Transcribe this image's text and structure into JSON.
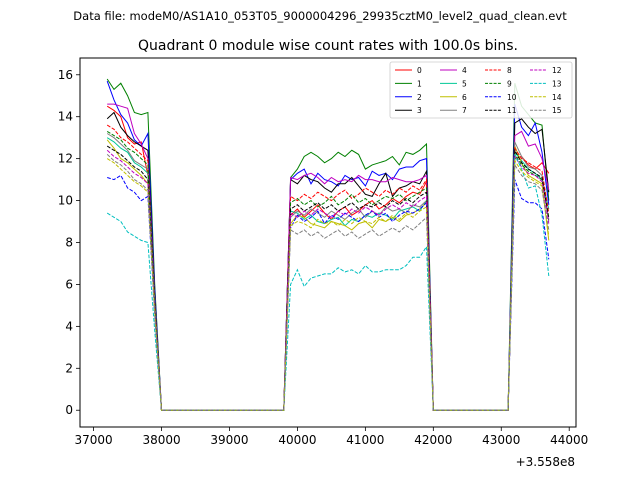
{
  "suptitle": "Data file: modeM0/AS1A10_053T05_9000004296_29935cztM0_level2_quad_clean.evt",
  "chart_data": {
    "type": "line",
    "title": "Quadrant 0 module wise count rates with 100.0s bins.",
    "xlabel": "",
    "ylabel": "",
    "x_offset_label": "+3.558e8",
    "xlim": [
      36800,
      44100
    ],
    "ylim": [
      -0.8,
      16.8
    ],
    "x_ticks": [
      37000,
      38000,
      39000,
      40000,
      41000,
      42000,
      43000,
      44000
    ],
    "x_tick_labels": [
      "37000",
      "38000",
      "39000",
      "40000",
      "41000",
      "42000",
      "43000",
      "44000"
    ],
    "y_ticks": [
      0,
      2,
      4,
      6,
      8,
      10,
      12,
      14,
      16
    ],
    "y_tick_labels": [
      "0",
      "2",
      "4",
      "6",
      "8",
      "10",
      "12",
      "14",
      "16"
    ],
    "legend_position": "upper-right",
    "x": [
      37200,
      37300,
      37400,
      37500,
      37600,
      37700,
      37800,
      37900,
      38000,
      38100,
      38200,
      38300,
      38400,
      38500,
      38600,
      38700,
      38800,
      38900,
      39000,
      39100,
      39200,
      39300,
      39400,
      39500,
      39600,
      39700,
      39800,
      39900,
      40000,
      40100,
      40200,
      40300,
      40400,
      40500,
      40600,
      40700,
      40800,
      40900,
      41000,
      41100,
      41200,
      41300,
      41400,
      41500,
      41600,
      41700,
      41800,
      41900,
      42000,
      42100,
      42200,
      42300,
      42400,
      42500,
      42600,
      42700,
      42800,
      42900,
      43000,
      43100,
      43200,
      43300,
      43400,
      43500,
      43600,
      43700
    ],
    "series": [
      {
        "name": "0",
        "color": "#ff0000",
        "dash": false,
        "values": [
          14.5,
          14.3,
          14.0,
          13.0,
          12.7,
          12.8,
          11.2,
          5.0,
          0,
          0,
          0,
          0,
          0,
          0,
          0,
          0,
          0,
          0,
          0,
          0,
          0,
          0,
          0,
          0,
          0,
          0,
          0,
          9.3,
          9.6,
          9.2,
          9.5,
          9.8,
          9.4,
          9.1,
          9.5,
          9.7,
          9.3,
          9.5,
          9.8,
          10.0,
          9.6,
          9.8,
          10.1,
          9.9,
          10.2,
          10.4,
          10.3,
          10.9,
          0,
          0,
          0,
          0,
          0,
          0,
          0,
          0,
          0,
          0,
          0,
          0,
          12.0,
          12.1,
          11.7,
          11.5,
          11.8,
          11.3
        ]
      },
      {
        "name": "1",
        "color": "#008000",
        "dash": false,
        "values": [
          15.8,
          15.3,
          15.6,
          15.0,
          14.2,
          14.1,
          14.2,
          6.0,
          0,
          0,
          0,
          0,
          0,
          0,
          0,
          0,
          0,
          0,
          0,
          0,
          0,
          0,
          0,
          0,
          0,
          0,
          0,
          11.1,
          11.5,
          12.1,
          12.3,
          12.1,
          11.8,
          12.0,
          12.3,
          12.1,
          12.4,
          12.2,
          11.5,
          11.7,
          11.8,
          11.9,
          12.1,
          11.7,
          12.3,
          12.2,
          12.4,
          12.7,
          0,
          0,
          0,
          0,
          0,
          0,
          0,
          0,
          0,
          0,
          0,
          0,
          15.6,
          14.5,
          14.1,
          13.7,
          13.6,
          10.0
        ]
      },
      {
        "name": "2",
        "color": "#0000ff",
        "dash": false,
        "values": [
          15.7,
          14.8,
          14.1,
          13.7,
          12.9,
          12.6,
          13.2,
          5.8,
          0,
          0,
          0,
          0,
          0,
          0,
          0,
          0,
          0,
          0,
          0,
          0,
          0,
          0,
          0,
          0,
          0,
          0,
          0,
          11.0,
          11.3,
          11.5,
          10.8,
          11.3,
          11.0,
          10.9,
          10.7,
          11.2,
          11.0,
          11.1,
          10.7,
          11.4,
          11.2,
          11.3,
          11.0,
          11.5,
          11.6,
          11.6,
          11.9,
          12.0,
          0,
          0,
          0,
          0,
          0,
          0,
          0,
          0,
          0,
          0,
          0,
          0,
          14.6,
          13.5,
          13.1,
          13.7,
          12.3,
          9.8
        ]
      },
      {
        "name": "3",
        "color": "#000000",
        "dash": false,
        "values": [
          13.9,
          14.2,
          13.5,
          13.1,
          12.8,
          12.6,
          12.4,
          5.5,
          0,
          0,
          0,
          0,
          0,
          0,
          0,
          0,
          0,
          0,
          0,
          0,
          0,
          0,
          0,
          0,
          0,
          0,
          0,
          11.0,
          10.8,
          11.2,
          11.0,
          10.9,
          10.6,
          10.4,
          10.8,
          10.8,
          11.1,
          10.7,
          10.3,
          10.2,
          10.8,
          11.3,
          10.2,
          10.6,
          10.7,
          10.9,
          10.8,
          11.4,
          0,
          0,
          0,
          0,
          0,
          0,
          0,
          0,
          0,
          0,
          0,
          0,
          13.7,
          13.9,
          13.5,
          13.2,
          13.4,
          10.4
        ]
      },
      {
        "name": "4",
        "color": "#bf00bf",
        "dash": false,
        "values": [
          14.6,
          14.6,
          14.5,
          14.4,
          13.2,
          12.7,
          12.0,
          5.3,
          0,
          0,
          0,
          0,
          0,
          0,
          0,
          0,
          0,
          0,
          0,
          0,
          0,
          0,
          0,
          0,
          0,
          0,
          0,
          11.1,
          11.0,
          11.2,
          11.3,
          11.1,
          10.8,
          11.1,
          10.9,
          11.0,
          10.9,
          11.2,
          11.0,
          11.0,
          10.9,
          10.9,
          11.1,
          11.0,
          10.9,
          10.9,
          11.0,
          11.2,
          0,
          0,
          0,
          0,
          0,
          0,
          0,
          0,
          0,
          0,
          0,
          0,
          13.1,
          13.3,
          12.6,
          12.7,
          12.0,
          10.5
        ]
      },
      {
        "name": "5",
        "color": "#00c896",
        "dash": false,
        "values": [
          13.0,
          12.8,
          12.5,
          12.3,
          11.8,
          11.6,
          11.3,
          5.2,
          0,
          0,
          0,
          0,
          0,
          0,
          0,
          0,
          0,
          0,
          0,
          0,
          0,
          0,
          0,
          0,
          0,
          0,
          0,
          9.5,
          9.4,
          9.1,
          9.3,
          9.0,
          8.9,
          9.1,
          9.2,
          8.8,
          9.1,
          9.0,
          9.3,
          9.2,
          9.4,
          9.3,
          9.1,
          9.5,
          9.6,
          9.7,
          9.5,
          10.0,
          0,
          0,
          0,
          0,
          0,
          0,
          0,
          0,
          0,
          0,
          0,
          0,
          12.3,
          11.9,
          11.5,
          11.3,
          11.0,
          9.6
        ]
      },
      {
        "name": "6",
        "color": "#bfbf00",
        "dash": false,
        "values": [
          12.9,
          12.5,
          12.0,
          11.8,
          11.5,
          11.2,
          10.8,
          5.0,
          0,
          0,
          0,
          0,
          0,
          0,
          0,
          0,
          0,
          0,
          0,
          0,
          0,
          0,
          0,
          0,
          0,
          0,
          0,
          8.9,
          9.3,
          9.2,
          8.9,
          8.8,
          8.7,
          9.0,
          8.9,
          8.8,
          8.6,
          8.9,
          9.0,
          8.7,
          9.1,
          9.0,
          9.2,
          9.0,
          9.3,
          9.4,
          9.6,
          9.9,
          0,
          0,
          0,
          0,
          0,
          0,
          0,
          0,
          0,
          0,
          0,
          0,
          12.6,
          11.8,
          11.2,
          11.0,
          10.8,
          8.1
        ]
      },
      {
        "name": "7",
        "color": "#808080",
        "dash": false,
        "values": [
          13.2,
          13.0,
          12.7,
          12.4,
          11.9,
          11.7,
          11.5,
          5.1,
          0,
          0,
          0,
          0,
          0,
          0,
          0,
          0,
          0,
          0,
          0,
          0,
          0,
          0,
          0,
          0,
          0,
          0,
          0,
          9.2,
          9.5,
          9.3,
          9.6,
          9.4,
          9.2,
          9.5,
          9.3,
          9.1,
          9.4,
          9.6,
          9.2,
          9.5,
          9.3,
          9.7,
          9.5,
          9.6,
          9.4,
          9.8,
          9.7,
          10.0,
          0,
          0,
          0,
          0,
          0,
          0,
          0,
          0,
          0,
          0,
          0,
          0,
          12.8,
          12.1,
          11.6,
          11.5,
          11.2,
          9.0
        ]
      },
      {
        "name": "8",
        "color": "#ff0000",
        "dash": true,
        "values": [
          13.6,
          13.4,
          13.0,
          12.8,
          12.5,
          12.2,
          11.9,
          5.2,
          0,
          0,
          0,
          0,
          0,
          0,
          0,
          0,
          0,
          0,
          0,
          0,
          0,
          0,
          0,
          0,
          0,
          0,
          0,
          10.2,
          10.0,
          10.3,
          10.1,
          10.4,
          10.2,
          10.0,
          10.3,
          10.5,
          10.1,
          10.3,
          10.6,
          10.4,
          10.2,
          10.5,
          10.3,
          10.6,
          10.4,
          10.7,
          10.5,
          11.0,
          0,
          0,
          0,
          0,
          0,
          0,
          0,
          0,
          0,
          0,
          0,
          0,
          12.5,
          12.0,
          11.8,
          11.6,
          11.4,
          9.4
        ]
      },
      {
        "name": "9",
        "color": "#008000",
        "dash": true,
        "values": [
          13.3,
          13.1,
          12.9,
          12.5,
          12.3,
          12.0,
          11.7,
          5.1,
          0,
          0,
          0,
          0,
          0,
          0,
          0,
          0,
          0,
          0,
          0,
          0,
          0,
          0,
          0,
          0,
          0,
          0,
          0,
          9.9,
          10.1,
          9.8,
          10.0,
          9.7,
          9.9,
          10.2,
          9.8,
          10.0,
          10.3,
          9.9,
          10.1,
          9.8,
          10.0,
          10.2,
          10.1,
          10.3,
          10.0,
          10.2,
          10.4,
          10.6,
          0,
          0,
          0,
          0,
          0,
          0,
          0,
          0,
          0,
          0,
          0,
          0,
          12.2,
          11.7,
          11.4,
          11.2,
          11.0,
          9.2
        ]
      },
      {
        "name": "10",
        "color": "#0000ff",
        "dash": true,
        "values": [
          11.1,
          11.0,
          11.2,
          10.6,
          10.4,
          10.0,
          10.2,
          4.6,
          0,
          0,
          0,
          0,
          0,
          0,
          0,
          0,
          0,
          0,
          0,
          0,
          0,
          0,
          0,
          0,
          0,
          0,
          0,
          8.7,
          9.3,
          9.0,
          9.2,
          9.5,
          8.9,
          9.3,
          9.1,
          9.4,
          9.2,
          9.0,
          9.3,
          9.5,
          9.2,
          9.4,
          9.0,
          9.3,
          9.5,
          9.4,
          9.6,
          9.9,
          0,
          0,
          0,
          0,
          0,
          0,
          0,
          0,
          0,
          0,
          0,
          0,
          11.0,
          10.1,
          9.9,
          9.9,
          9.6,
          7.2
        ]
      },
      {
        "name": "11",
        "color": "#000000",
        "dash": true,
        "values": [
          12.6,
          12.4,
          12.2,
          11.9,
          11.6,
          11.4,
          11.0,
          4.9,
          0,
          0,
          0,
          0,
          0,
          0,
          0,
          0,
          0,
          0,
          0,
          0,
          0,
          0,
          0,
          0,
          0,
          0,
          0,
          9.6,
          9.8,
          9.5,
          9.7,
          9.9,
          9.6,
          9.8,
          9.5,
          9.7,
          9.9,
          9.6,
          9.8,
          9.7,
          9.9,
          9.7,
          10.0,
          9.8,
          10.1,
          9.9,
          10.2,
          10.4,
          0,
          0,
          0,
          0,
          0,
          0,
          0,
          0,
          0,
          0,
          0,
          0,
          12.4,
          11.8,
          11.5,
          11.3,
          11.1,
          9.1
        ]
      },
      {
        "name": "12",
        "color": "#bf00bf",
        "dash": true,
        "values": [
          12.4,
          12.1,
          11.9,
          11.6,
          11.3,
          11.1,
          10.8,
          4.8,
          0,
          0,
          0,
          0,
          0,
          0,
          0,
          0,
          0,
          0,
          0,
          0,
          0,
          0,
          0,
          0,
          0,
          0,
          0,
          9.4,
          9.2,
          9.5,
          9.3,
          9.6,
          9.4,
          9.2,
          9.5,
          9.3,
          9.6,
          9.4,
          9.7,
          9.5,
          9.3,
          9.6,
          9.8,
          9.6,
          9.9,
          9.7,
          10.0,
          10.2,
          0,
          0,
          0,
          0,
          0,
          0,
          0,
          0,
          0,
          0,
          0,
          0,
          12.1,
          11.6,
          11.3,
          11.2,
          10.9,
          8.9
        ]
      },
      {
        "name": "13",
        "color": "#00bfbf",
        "dash": true,
        "values": [
          9.4,
          9.2,
          9.0,
          8.5,
          8.3,
          8.1,
          8.0,
          3.8,
          0,
          0,
          0,
          0,
          0,
          0,
          0,
          0,
          0,
          0,
          0,
          0,
          0,
          0,
          0,
          0,
          0,
          0,
          0,
          6.0,
          6.7,
          5.9,
          6.3,
          6.4,
          6.5,
          6.5,
          6.8,
          6.6,
          6.7,
          6.5,
          6.9,
          6.6,
          6.6,
          6.7,
          6.7,
          6.7,
          6.9,
          7.3,
          7.3,
          7.8,
          0,
          0,
          0,
          0,
          0,
          0,
          0,
          0,
          0,
          0,
          0,
          0,
          12.2,
          11.5,
          10.6,
          10.7,
          9.3,
          6.4
        ]
      },
      {
        "name": "14",
        "color": "#bfbf00",
        "dash": true,
        "values": [
          12.0,
          11.8,
          11.5,
          11.2,
          10.9,
          10.7,
          10.4,
          4.7,
          0,
          0,
          0,
          0,
          0,
          0,
          0,
          0,
          0,
          0,
          0,
          0,
          0,
          0,
          0,
          0,
          0,
          0,
          0,
          8.8,
          9.0,
          8.9,
          8.7,
          9.1,
          8.9,
          9.0,
          8.8,
          9.1,
          8.9,
          9.2,
          9.0,
          8.9,
          9.2,
          9.0,
          9.3,
          9.1,
          9.4,
          9.2,
          9.5,
          9.7,
          0,
          0,
          0,
          0,
          0,
          0,
          0,
          0,
          0,
          0,
          0,
          0,
          11.9,
          11.4,
          11.1,
          10.9,
          10.7,
          8.3
        ]
      },
      {
        "name": "15",
        "color": "#808080",
        "dash": true,
        "values": [
          12.2,
          11.9,
          11.7,
          11.4,
          11.0,
          10.8,
          10.5,
          4.6,
          0,
          0,
          0,
          0,
          0,
          0,
          0,
          0,
          0,
          0,
          0,
          0,
          0,
          0,
          0,
          0,
          0,
          0,
          0,
          8.6,
          8.4,
          8.6,
          8.3,
          8.5,
          8.2,
          8.4,
          8.6,
          8.3,
          8.5,
          8.2,
          8.4,
          8.6,
          8.3,
          8.5,
          8.7,
          8.5,
          8.8,
          8.6,
          8.9,
          9.2,
          0,
          0,
          0,
          0,
          0,
          0,
          0,
          0,
          0,
          0,
          0,
          0,
          11.7,
          11.2,
          10.9,
          10.8,
          10.5,
          8.6
        ]
      }
    ]
  }
}
